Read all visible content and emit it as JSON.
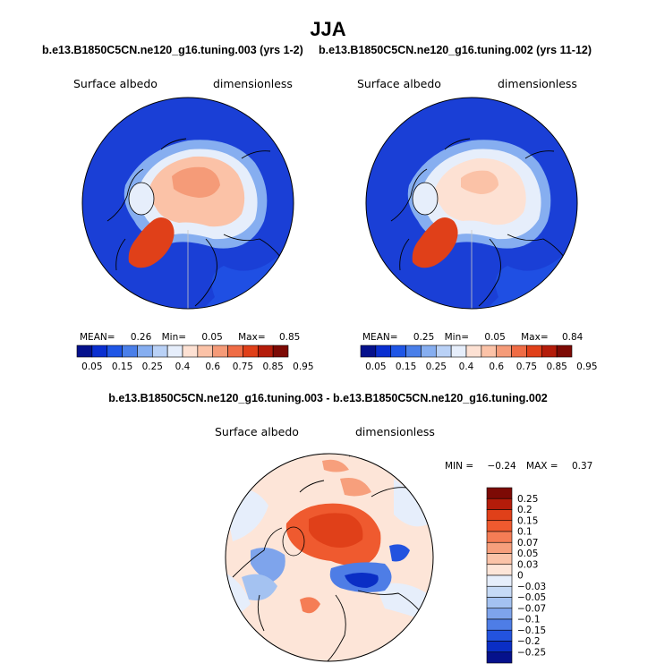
{
  "chart_data": {
    "type": "heatmap",
    "title": "JJA",
    "panels": [
      {
        "id": "p1",
        "subtitle": "b.e13.B1850C5CN.ne120_g16.tuning.003 (yrs 1-2)",
        "left_label": "Surface albedo",
        "right_label": "dimensionless",
        "stats": {
          "mean_label": "MEAN=",
          "mean": "0.26",
          "min_label": "Min=",
          "min": "0.05",
          "max_label": "Max=",
          "max": "0.85"
        }
      },
      {
        "id": "p2",
        "subtitle": "b.e13.B1850C5CN.ne120_g16.tuning.002 (yrs 11-12)",
        "left_label": "Surface albedo",
        "right_label": "dimensionless",
        "stats": {
          "mean_label": "MEAN=",
          "mean": "0.25",
          "min_label": "Min=",
          "min": "0.05",
          "max_label": "Max=",
          "max": "0.84"
        }
      },
      {
        "id": "diff",
        "subtitle": "b.e13.B1850C5CN.ne120_g16.tuning.003 - b.e13.B1850C5CN.ne120_g16.tuning.002",
        "left_label": "Surface albedo",
        "right_label": "dimensionless",
        "stats": {
          "min_label": "MIN =",
          "min": "−0.24",
          "max_label": "MAX =",
          "max": "0.37"
        }
      }
    ],
    "colorbar_main": {
      "ticks": [
        "0.05",
        "0.15",
        "0.25",
        "0.4",
        "0.6",
        "0.75",
        "0.85",
        "0.95"
      ],
      "colors": [
        "#05118c",
        "#0a2fd0",
        "#1f56e6",
        "#4a7fe9",
        "#86aef0",
        "#b9d1f6",
        "#e6eefb",
        "#fde1d3",
        "#fbc2a7",
        "#f59b78",
        "#ef6c45",
        "#e04019",
        "#b41c0a",
        "#7d0a05"
      ]
    },
    "colorbar_diff": {
      "ticks": [
        "0.25",
        "0.2",
        "0.15",
        "0.1",
        "0.07",
        "0.05",
        "0.03",
        "0",
        "−0.03",
        "−0.05",
        "−0.07",
        "−0.1",
        "−0.15",
        "−0.2",
        "−0.25"
      ],
      "colors": [
        "#7d0a05",
        "#b41c0a",
        "#e04019",
        "#ef5a2f",
        "#f57d55",
        "#f79f7c",
        "#fbc3a8",
        "#fde5d8",
        "#e6eefb",
        "#c6daf6",
        "#a4c2f1",
        "#7ea4ec",
        "#4e7de6",
        "#2353df",
        "#0a2ec5",
        "#05118c"
      ]
    }
  }
}
